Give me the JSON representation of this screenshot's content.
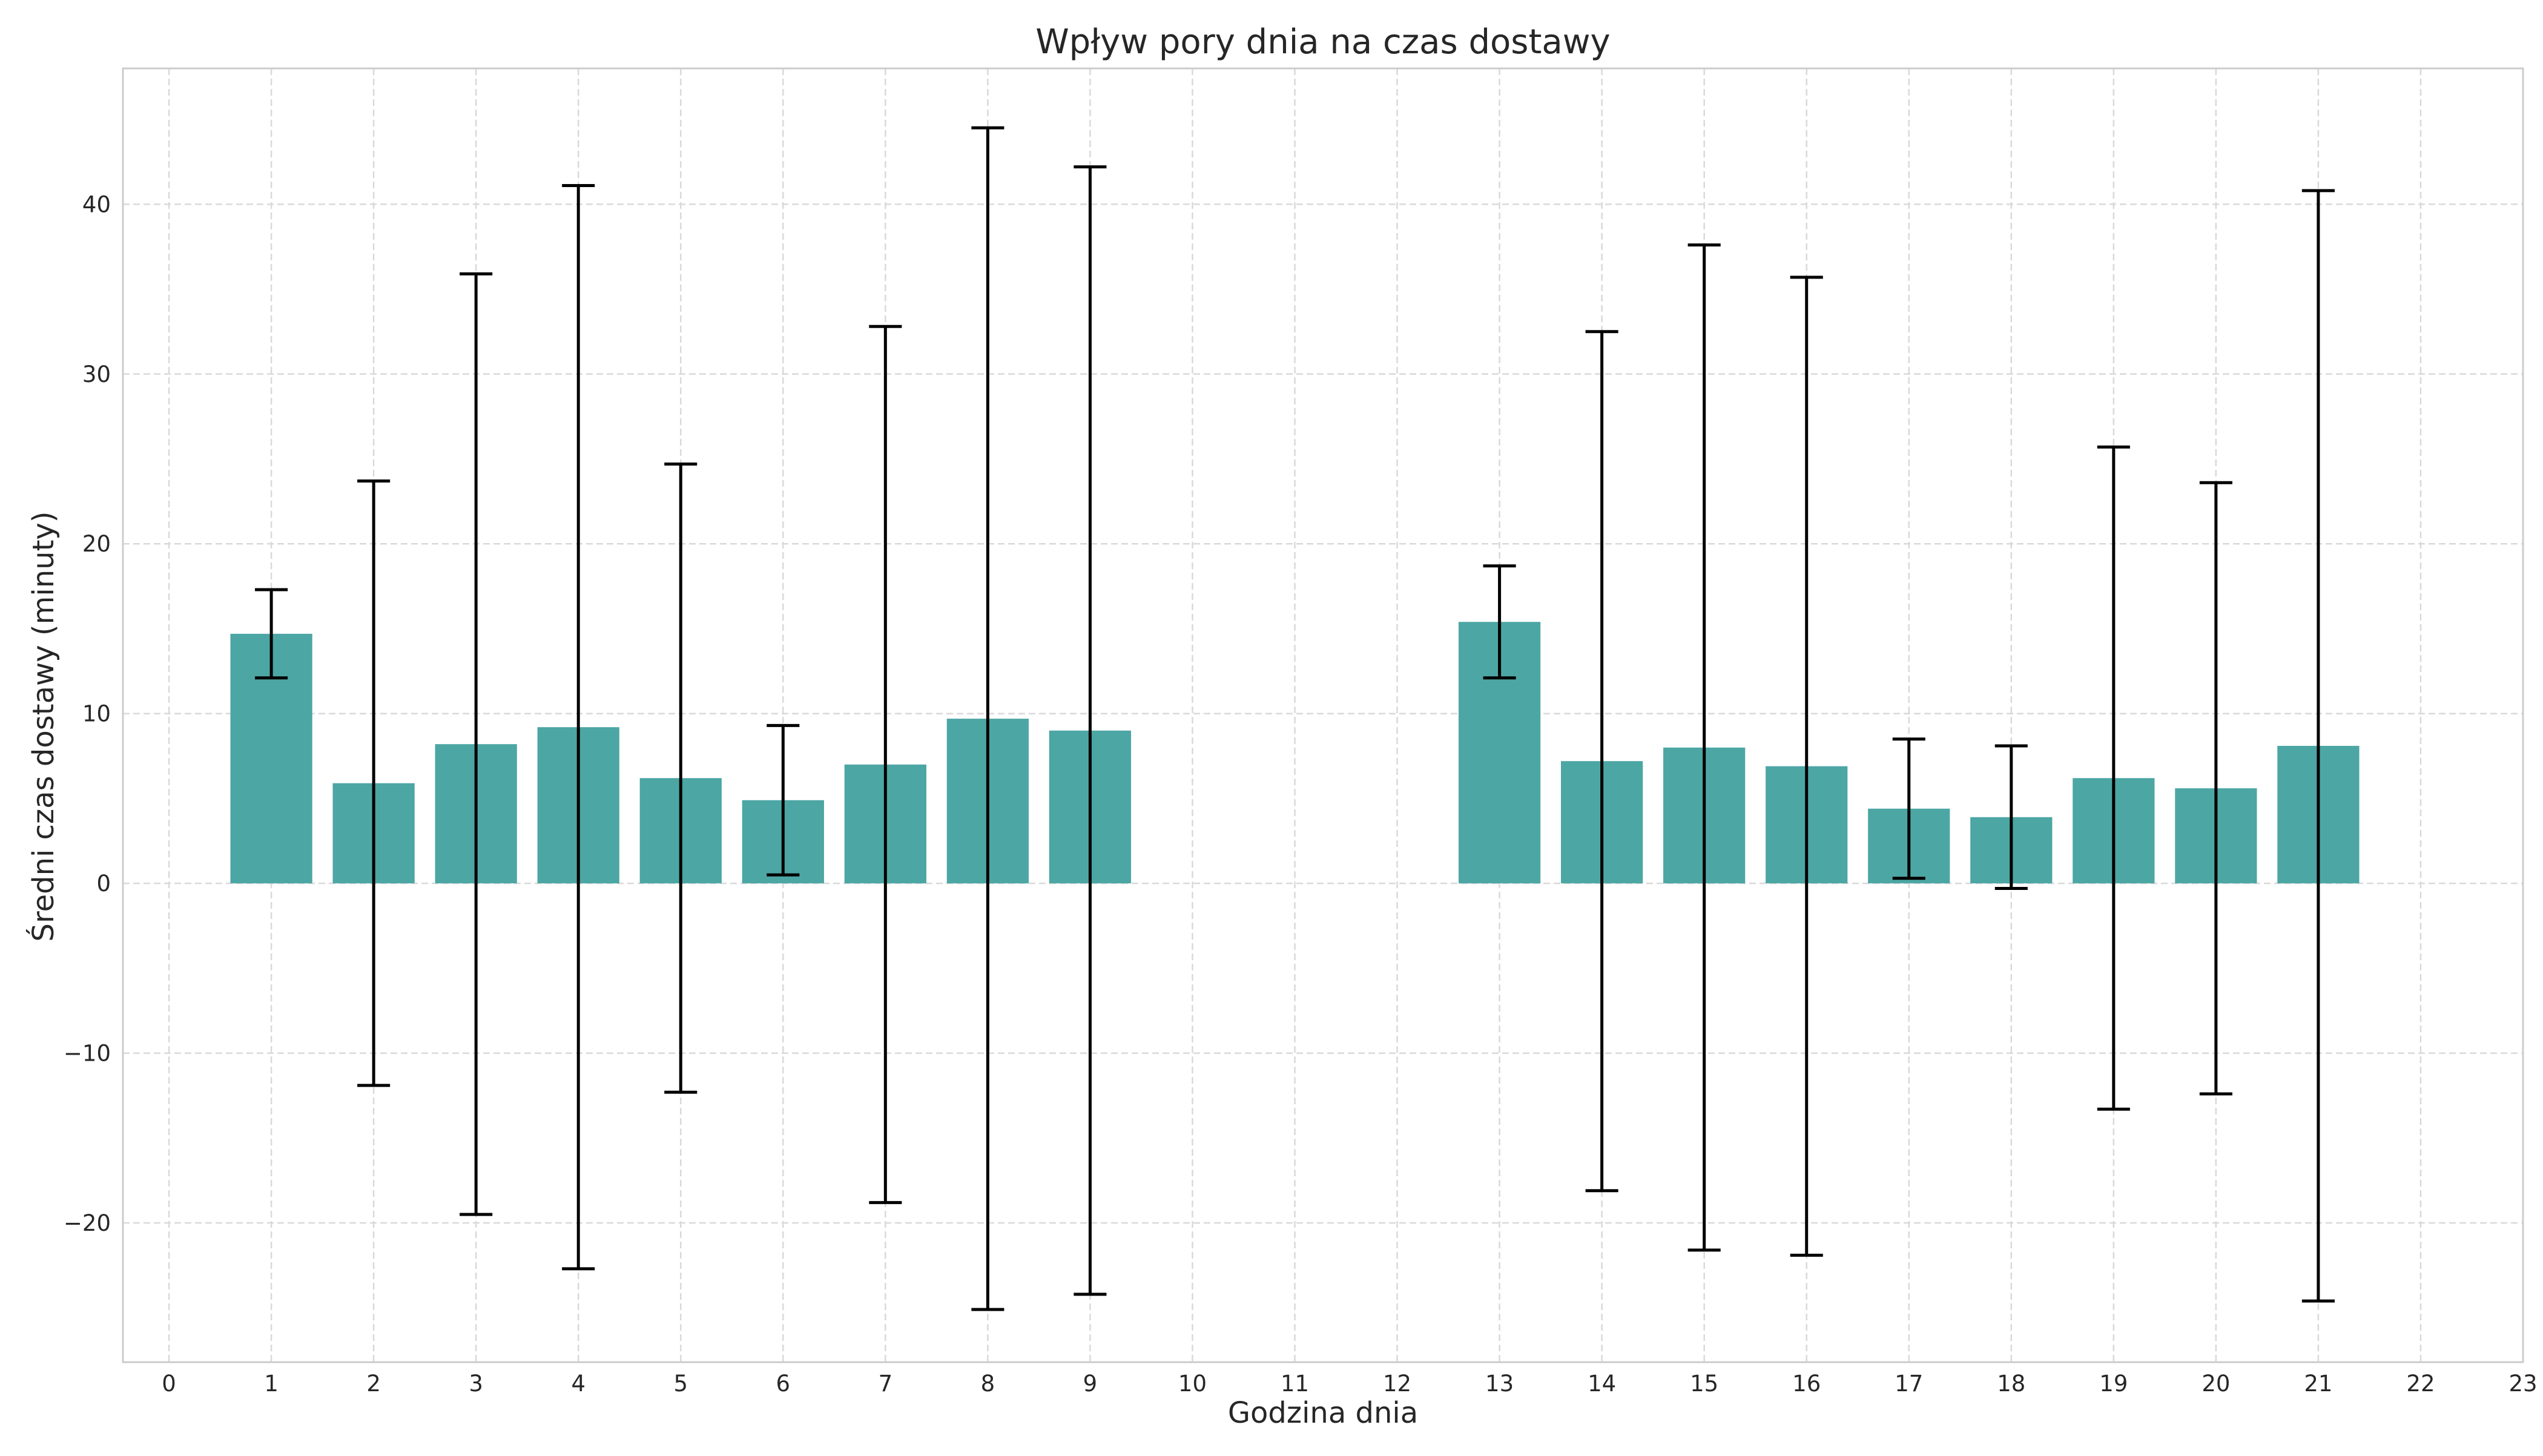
{
  "chart_data": {
    "type": "bar",
    "title": "Wpływ pory dnia na czas dostawy",
    "xlabel": "Godzina dnia",
    "ylabel": "Średni czas dostawy (minuty)",
    "xlim": [
      -0.45,
      23
    ],
    "ylim": [
      -28.2,
      48
    ],
    "grid": true,
    "x_ticks": [
      0,
      1,
      2,
      3,
      4,
      5,
      6,
      7,
      8,
      9,
      10,
      11,
      12,
      13,
      14,
      15,
      16,
      17,
      18,
      19,
      20,
      21,
      22,
      23
    ],
    "y_ticks": [
      -20,
      -10,
      0,
      10,
      20,
      30,
      40
    ],
    "y_tick_labels": [
      "−20",
      "−10",
      "0",
      "10",
      "20",
      "30",
      "40"
    ],
    "colors": {
      "bar": "#4ca6a4",
      "error_bar": "#000000",
      "grid": "#d9d9d9",
      "frame": "#cccccc"
    },
    "series": [
      {
        "x": [
          1,
          2,
          3,
          4,
          5,
          6,
          7,
          8,
          9,
          13,
          14,
          15,
          16,
          17,
          18,
          19,
          20,
          21
        ],
        "values": [
          14.7,
          5.9,
          8.2,
          9.2,
          6.2,
          4.9,
          7.0,
          9.7,
          9.0,
          15.4,
          7.2,
          8.0,
          6.9,
          4.4,
          3.9,
          6.2,
          5.6,
          8.1
        ],
        "error": [
          2.6,
          17.8,
          27.7,
          31.9,
          18.5,
          4.4,
          25.8,
          34.8,
          33.2,
          3.3,
          25.3,
          29.6,
          28.8,
          4.1,
          4.2,
          19.5,
          18.0,
          32.7
        ]
      }
    ]
  }
}
